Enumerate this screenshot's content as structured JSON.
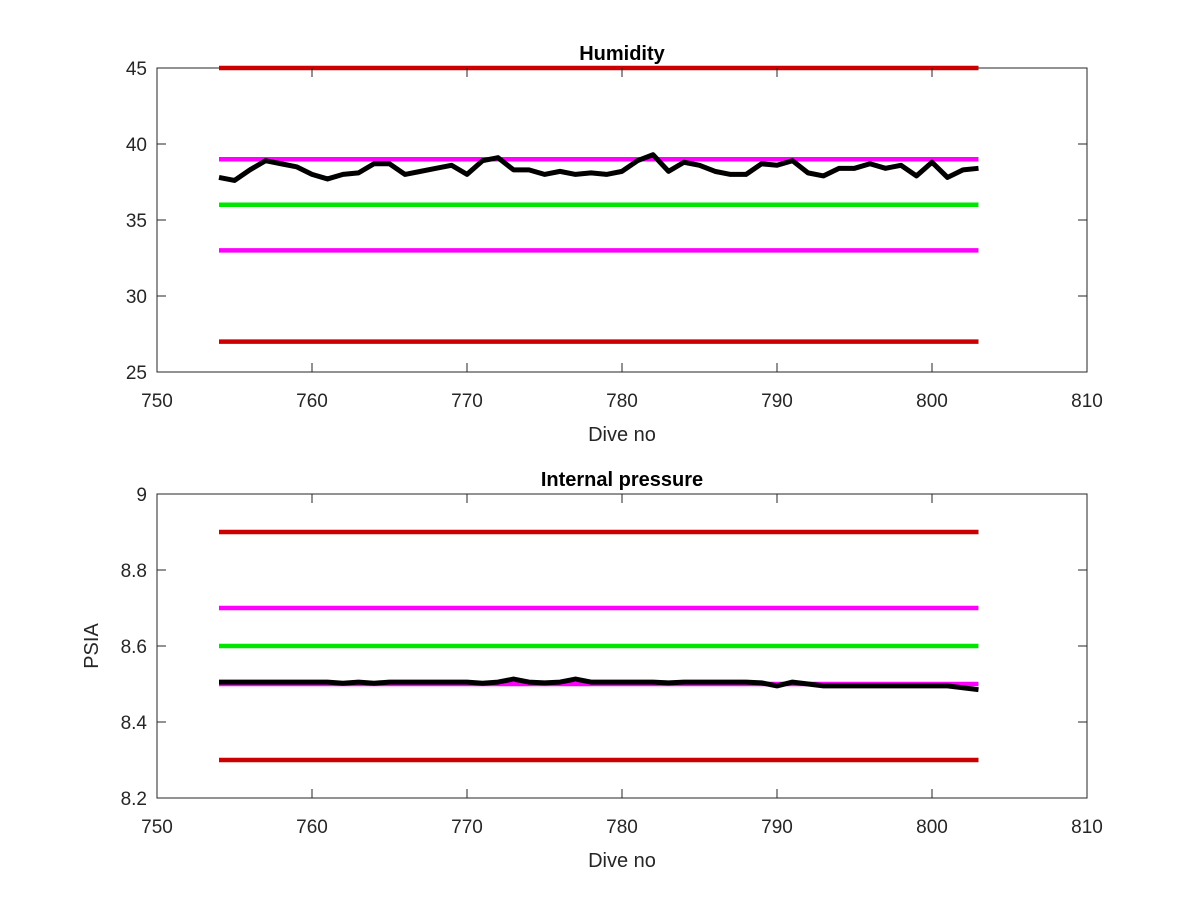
{
  "chart_data": [
    {
      "type": "line",
      "title": "Humidity",
      "xlabel": "Dive no",
      "ylabel": "",
      "xlim": [
        750,
        810
      ],
      "ylim": [
        25,
        45
      ],
      "xticks": [
        "750",
        "760",
        "770",
        "780",
        "790",
        "800",
        "810"
      ],
      "yticks": [
        "25",
        "30",
        "35",
        "40",
        "45"
      ],
      "grid": false,
      "series": [
        {
          "color": "#000000",
          "x": [
            754,
            755,
            756,
            757,
            758,
            759,
            760,
            761,
            762,
            763,
            764,
            765,
            766,
            767,
            768,
            769,
            770,
            771,
            772,
            773,
            774,
            775,
            776,
            777,
            778,
            779,
            780,
            781,
            782,
            783,
            784,
            785,
            786,
            787,
            788,
            789,
            790,
            791,
            792,
            793,
            794,
            795,
            796,
            797,
            798,
            799,
            800,
            801,
            802,
            803
          ],
          "values": [
            37.8,
            37.6,
            38.3,
            38.9,
            38.7,
            38.5,
            38.0,
            37.7,
            38.0,
            38.1,
            38.7,
            38.7,
            38.0,
            38.2,
            38.4,
            38.6,
            38.0,
            38.9,
            39.1,
            38.3,
            38.3,
            38.0,
            38.2,
            38.0,
            38.1,
            38.0,
            38.2,
            38.9,
            39.3,
            38.2,
            38.8,
            38.6,
            38.2,
            38.0,
            38.0,
            38.7,
            38.6,
            38.9,
            38.1,
            37.9,
            38.4,
            38.4,
            38.7,
            38.4,
            38.6,
            37.9,
            38.8,
            37.8,
            38.3,
            38.4
          ]
        },
        {
          "color": "#cc0000",
          "x": [
            754,
            803
          ],
          "values": [
            45,
            45
          ]
        },
        {
          "color": "#ff00ff",
          "x": [
            754,
            803
          ],
          "values": [
            39,
            39
          ]
        },
        {
          "color": "#00e600",
          "x": [
            754,
            803
          ],
          "values": [
            36,
            36
          ]
        },
        {
          "color": "#ff00ff",
          "x": [
            754,
            803
          ],
          "values": [
            33,
            33
          ]
        },
        {
          "color": "#cc0000",
          "x": [
            754,
            803
          ],
          "values": [
            27,
            27
          ]
        }
      ]
    },
    {
      "type": "line",
      "title": "Internal pressure",
      "xlabel": "Dive no",
      "ylabel": "PSIA",
      "xlim": [
        750,
        810
      ],
      "ylim": [
        8.2,
        9.0
      ],
      "xticks": [
        "750",
        "760",
        "770",
        "780",
        "790",
        "800",
        "810"
      ],
      "yticks": [
        "8.2",
        "8.4",
        "8.6",
        "8.8",
        "9"
      ],
      "grid": false,
      "series": [
        {
          "color": "#000000",
          "x": [
            754,
            755,
            756,
            757,
            758,
            759,
            760,
            761,
            762,
            763,
            764,
            765,
            766,
            767,
            768,
            769,
            770,
            771,
            772,
            773,
            774,
            775,
            776,
            777,
            778,
            779,
            780,
            781,
            782,
            783,
            784,
            785,
            786,
            787,
            788,
            789,
            790,
            791,
            792,
            793,
            794,
            795,
            796,
            797,
            798,
            799,
            800,
            801,
            802,
            803
          ],
          "values": [
            8.505,
            8.505,
            8.505,
            8.505,
            8.505,
            8.505,
            8.505,
            8.505,
            8.502,
            8.505,
            8.502,
            8.505,
            8.505,
            8.505,
            8.505,
            8.505,
            8.505,
            8.502,
            8.505,
            8.513,
            8.505,
            8.503,
            8.505,
            8.513,
            8.505,
            8.505,
            8.505,
            8.505,
            8.505,
            8.503,
            8.505,
            8.505,
            8.505,
            8.505,
            8.505,
            8.503,
            8.495,
            8.505,
            8.5,
            8.495,
            8.495,
            8.495,
            8.495,
            8.495,
            8.495,
            8.495,
            8.495,
            8.495,
            8.49,
            8.485
          ]
        },
        {
          "color": "#cc0000",
          "x": [
            754,
            803
          ],
          "values": [
            8.9,
            8.9
          ]
        },
        {
          "color": "#ff00ff",
          "x": [
            754,
            803
          ],
          "values": [
            8.7,
            8.7
          ]
        },
        {
          "color": "#00e600",
          "x": [
            754,
            803
          ],
          "values": [
            8.6,
            8.6
          ]
        },
        {
          "color": "#ff00ff",
          "x": [
            754,
            803
          ],
          "values": [
            8.5,
            8.5
          ]
        },
        {
          "color": "#cc0000",
          "x": [
            754,
            803
          ],
          "values": [
            8.3,
            8.3
          ]
        }
      ]
    }
  ]
}
